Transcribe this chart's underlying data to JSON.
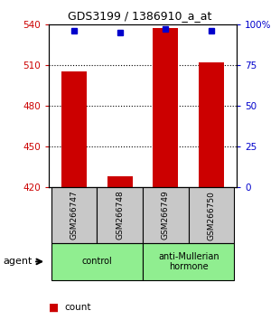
{
  "title": "GDS3199 / 1386910_a_at",
  "samples": [
    "GSM266747",
    "GSM266748",
    "GSM266749",
    "GSM266750"
  ],
  "count_values": [
    505,
    428,
    537,
    512
  ],
  "percentile_values": [
    96,
    95,
    97,
    96
  ],
  "ylim_left": [
    420,
    540
  ],
  "ylim_right": [
    0,
    100
  ],
  "yticks_left": [
    420,
    450,
    480,
    510,
    540
  ],
  "yticks_right": [
    0,
    25,
    50,
    75,
    100
  ],
  "yticklabels_right": [
    "0",
    "25",
    "50",
    "75",
    "100%"
  ],
  "groups": [
    {
      "label": "control",
      "samples_idx": [
        0,
        1
      ],
      "color": "#90EE90"
    },
    {
      "label": "anti-Mullerian\nhormone",
      "samples_idx": [
        2,
        3
      ],
      "color": "#90EE90"
    }
  ],
  "bar_color": "#CC0000",
  "dot_color": "#0000CC",
  "bar_width": 0.55,
  "sample_bg_color": "#C8C8C8",
  "left_tick_color": "#CC0000",
  "right_tick_color": "#0000CC",
  "legend_count_color": "#CC0000",
  "legend_pct_color": "#0000CC",
  "gridline_ticks": [
    450,
    480,
    510
  ]
}
